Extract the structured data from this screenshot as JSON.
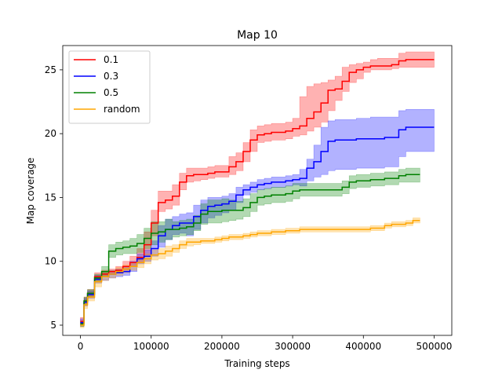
{
  "chart_data": {
    "type": "line",
    "title": "Map 10",
    "xlabel": "Training steps",
    "ylabel": "Map coverage",
    "xlim": [
      -25000,
      525000
    ],
    "ylim": [
      4.2,
      26.9
    ],
    "xticks": [
      0,
      100000,
      200000,
      300000,
      400000,
      500000
    ],
    "xtick_labels": [
      "0",
      "100000",
      "200000",
      "300000",
      "400000",
      "500000"
    ],
    "yticks": [
      5,
      10,
      15,
      20,
      25
    ],
    "ytick_labels": [
      "5",
      "10",
      "15",
      "20",
      "25"
    ],
    "grid": false,
    "legend_position": "top-left",
    "series": [
      {
        "name": "0.1",
        "color": "#ff0000",
        "x": [
          0,
          5000,
          10000,
          20000,
          30000,
          40000,
          50000,
          60000,
          70000,
          80000,
          90000,
          100000,
          110000,
          120000,
          130000,
          140000,
          150000,
          160000,
          170000,
          180000,
          190000,
          200000,
          210000,
          220000,
          230000,
          240000,
          250000,
          260000,
          270000,
          280000,
          290000,
          300000,
          310000,
          320000,
          330000,
          340000,
          350000,
          360000,
          370000,
          380000,
          390000,
          400000,
          410000,
          420000,
          430000,
          440000,
          450000,
          460000,
          470000,
          480000,
          490000,
          500000
        ],
        "y": [
          5.3,
          6.9,
          7.5,
          8.8,
          9.0,
          9.2,
          9.3,
          9.6,
          9.9,
          10.3,
          11.3,
          13.0,
          14.6,
          14.8,
          15.1,
          16.2,
          16.7,
          16.8,
          16.8,
          16.9,
          17.0,
          17.0,
          17.4,
          17.8,
          18.6,
          19.5,
          19.9,
          20.0,
          20.1,
          20.1,
          20.2,
          20.4,
          20.6,
          21.2,
          21.7,
          22.4,
          23.4,
          23.5,
          24.1,
          24.8,
          25.0,
          25.2,
          25.3,
          25.3,
          25.3,
          25.4,
          25.7,
          25.8,
          25.8,
          25.8,
          25.8,
          25.8
        ],
        "lower": [
          5.0,
          6.6,
          7.2,
          8.5,
          8.8,
          9.0,
          9.1,
          9.3,
          9.6,
          9.9,
          10.5,
          12.0,
          13.9,
          14.1,
          14.4,
          15.6,
          16.2,
          16.3,
          16.4,
          16.5,
          16.6,
          16.6,
          16.8,
          17.1,
          17.8,
          18.6,
          19.3,
          19.4,
          19.5,
          19.5,
          19.6,
          19.8,
          19.9,
          20.2,
          20.5,
          20.9,
          21.8,
          22.6,
          23.3,
          24.0,
          24.3,
          24.8,
          25.0,
          25.0,
          25.0,
          25.1,
          25.2,
          25.2,
          25.2,
          25.2,
          25.2,
          25.2
        ],
        "upper": [
          5.6,
          7.2,
          7.8,
          9.1,
          9.3,
          9.4,
          9.6,
          10.0,
          10.4,
          11.0,
          12.3,
          14.0,
          15.5,
          15.5,
          16.0,
          16.9,
          17.3,
          17.3,
          17.3,
          17.4,
          17.5,
          17.5,
          18.2,
          18.5,
          19.3,
          20.3,
          20.6,
          20.7,
          20.8,
          20.8,
          20.9,
          21.2,
          22.9,
          23.7,
          23.9,
          24.0,
          24.2,
          24.5,
          25.2,
          25.4,
          25.5,
          25.6,
          25.8,
          25.9,
          25.9,
          25.9,
          26.3,
          26.4,
          26.4,
          26.4,
          26.4,
          26.4
        ]
      },
      {
        "name": "0.3",
        "color": "#0000ff",
        "x": [
          0,
          5000,
          10000,
          20000,
          30000,
          40000,
          50000,
          60000,
          70000,
          80000,
          90000,
          100000,
          110000,
          120000,
          130000,
          140000,
          150000,
          160000,
          170000,
          180000,
          190000,
          200000,
          210000,
          220000,
          230000,
          240000,
          250000,
          260000,
          270000,
          280000,
          290000,
          300000,
          310000,
          320000,
          330000,
          340000,
          350000,
          360000,
          370000,
          380000,
          390000,
          400000,
          410000,
          420000,
          430000,
          440000,
          450000,
          460000,
          470000,
          480000,
          490000,
          500000
        ],
        "y": [
          5.2,
          6.8,
          7.4,
          8.6,
          8.8,
          9.0,
          9.1,
          9.2,
          9.6,
          10.2,
          10.4,
          11.0,
          12.0,
          12.5,
          12.8,
          13.0,
          13.0,
          13.5,
          14.0,
          14.3,
          14.4,
          14.5,
          14.7,
          15.2,
          15.6,
          15.8,
          16.0,
          16.1,
          16.2,
          16.2,
          16.3,
          16.4,
          16.5,
          17.3,
          17.8,
          18.6,
          19.4,
          19.5,
          19.5,
          19.5,
          19.6,
          19.6,
          19.6,
          19.6,
          19.7,
          19.7,
          20.3,
          20.5,
          20.5,
          20.5,
          20.5,
          20.5
        ],
        "lower": [
          4.9,
          6.5,
          7.1,
          8.3,
          8.5,
          8.7,
          8.8,
          8.9,
          9.2,
          9.8,
          10.0,
          10.4,
          11.1,
          11.7,
          12.1,
          12.2,
          12.0,
          12.5,
          13.0,
          13.4,
          13.6,
          13.8,
          14.0,
          14.6,
          15.2,
          15.4,
          15.6,
          15.7,
          15.8,
          15.8,
          15.9,
          16.0,
          15.9,
          16.3,
          16.6,
          16.8,
          17.1,
          17.2,
          17.2,
          17.2,
          17.3,
          17.3,
          17.3,
          17.3,
          17.4,
          17.4,
          18.2,
          18.6,
          18.6,
          18.6,
          18.6,
          18.6
        ],
        "upper": [
          5.5,
          7.1,
          7.7,
          8.9,
          9.1,
          9.3,
          9.4,
          9.6,
          10.0,
          10.6,
          10.9,
          11.6,
          12.8,
          13.3,
          13.5,
          13.7,
          13.8,
          14.4,
          14.8,
          15.0,
          15.0,
          15.1,
          15.3,
          15.8,
          16.0,
          16.2,
          16.4,
          16.5,
          16.6,
          16.6,
          16.7,
          16.8,
          17.2,
          18.0,
          19.1,
          20.5,
          21.0,
          21.1,
          21.1,
          21.1,
          21.2,
          21.2,
          21.3,
          21.3,
          21.3,
          21.3,
          21.8,
          21.9,
          21.9,
          21.9,
          21.9,
          21.9
        ]
      },
      {
        "name": "0.5",
        "color": "#008000",
        "x": [
          0,
          5000,
          10000,
          20000,
          30000,
          40000,
          50000,
          60000,
          70000,
          80000,
          90000,
          100000,
          110000,
          120000,
          130000,
          140000,
          150000,
          160000,
          170000,
          180000,
          190000,
          200000,
          210000,
          220000,
          230000,
          240000,
          250000,
          260000,
          270000,
          280000,
          290000,
          300000,
          310000,
          320000,
          330000,
          340000,
          350000,
          360000,
          370000,
          380000,
          390000,
          400000,
          410000,
          420000,
          430000,
          440000,
          450000,
          460000,
          470000,
          480000
        ],
        "y": [
          5.1,
          6.9,
          7.5,
          8.7,
          9.2,
          10.8,
          11.0,
          11.1,
          11.2,
          11.4,
          11.8,
          12.2,
          12.3,
          12.5,
          12.5,
          12.6,
          12.7,
          13.0,
          13.7,
          13.9,
          13.9,
          14.0,
          14.0,
          14.0,
          14.2,
          14.6,
          15.0,
          15.1,
          15.2,
          15.2,
          15.3,
          15.5,
          15.6,
          15.6,
          15.6,
          15.6,
          15.6,
          15.6,
          15.8,
          16.2,
          16.3,
          16.3,
          16.4,
          16.4,
          16.5,
          16.5,
          16.7,
          16.8,
          16.8,
          16.8
        ],
        "lower": [
          4.9,
          6.6,
          7.2,
          8.4,
          8.8,
          10.3,
          10.5,
          10.6,
          10.6,
          10.7,
          11.0,
          11.3,
          11.5,
          11.7,
          11.9,
          12.0,
          12.1,
          12.4,
          12.9,
          13.0,
          13.0,
          13.1,
          13.2,
          13.3,
          13.5,
          13.9,
          14.4,
          14.5,
          14.6,
          14.6,
          14.7,
          14.9,
          15.1,
          15.1,
          15.1,
          15.1,
          15.1,
          15.1,
          15.3,
          15.7,
          15.8,
          15.8,
          15.9,
          15.9,
          16.0,
          16.0,
          16.2,
          16.2,
          16.2,
          16.2
        ],
        "upper": [
          5.3,
          7.2,
          7.8,
          9.0,
          9.6,
          11.3,
          11.5,
          11.6,
          11.8,
          12.1,
          12.6,
          13.1,
          13.1,
          13.3,
          13.1,
          13.2,
          13.3,
          13.6,
          14.5,
          14.8,
          14.8,
          14.9,
          14.8,
          14.7,
          14.9,
          15.3,
          15.6,
          15.7,
          15.8,
          15.8,
          15.9,
          16.1,
          16.1,
          16.1,
          16.1,
          16.1,
          16.1,
          16.1,
          16.3,
          16.7,
          16.8,
          16.8,
          16.9,
          16.9,
          17.0,
          17.0,
          17.2,
          17.3,
          17.3,
          17.3
        ]
      },
      {
        "name": "random",
        "color": "#ffa500",
        "x": [
          0,
          5000,
          10000,
          20000,
          30000,
          40000,
          50000,
          60000,
          70000,
          80000,
          90000,
          100000,
          110000,
          120000,
          130000,
          140000,
          150000,
          160000,
          170000,
          180000,
          190000,
          200000,
          210000,
          220000,
          230000,
          240000,
          250000,
          260000,
          270000,
          280000,
          290000,
          300000,
          310000,
          320000,
          330000,
          340000,
          350000,
          360000,
          370000,
          380000,
          390000,
          400000,
          410000,
          420000,
          430000,
          440000,
          450000,
          460000,
          470000,
          480000
        ],
        "y": [
          5.0,
          6.6,
          7.2,
          8.4,
          8.8,
          9.0,
          9.2,
          9.4,
          9.6,
          9.9,
          10.2,
          10.5,
          10.6,
          10.8,
          11.0,
          11.3,
          11.5,
          11.5,
          11.6,
          11.6,
          11.7,
          11.8,
          11.9,
          11.9,
          12.0,
          12.1,
          12.2,
          12.2,
          12.3,
          12.3,
          12.4,
          12.4,
          12.5,
          12.5,
          12.5,
          12.5,
          12.5,
          12.5,
          12.5,
          12.5,
          12.5,
          12.5,
          12.6,
          12.6,
          12.8,
          12.9,
          12.9,
          13.0,
          13.2,
          13.2
        ],
        "lower": [
          4.8,
          6.3,
          6.9,
          8.0,
          8.5,
          8.7,
          8.9,
          9.1,
          9.3,
          9.5,
          9.8,
          10.1,
          10.2,
          10.4,
          10.7,
          11.0,
          11.2,
          11.3,
          11.4,
          11.4,
          11.5,
          11.6,
          11.7,
          11.7,
          11.8,
          11.9,
          12.0,
          12.0,
          12.1,
          12.1,
          12.2,
          12.2,
          12.3,
          12.3,
          12.3,
          12.3,
          12.3,
          12.3,
          12.3,
          12.3,
          12.3,
          12.3,
          12.4,
          12.4,
          12.6,
          12.7,
          12.7,
          12.8,
          13.0,
          13.0
        ],
        "upper": [
          5.2,
          6.9,
          7.5,
          8.7,
          9.1,
          9.3,
          9.5,
          9.7,
          9.9,
          10.3,
          10.6,
          10.9,
          11.0,
          11.2,
          11.3,
          11.6,
          11.8,
          11.8,
          11.8,
          11.8,
          11.9,
          12.0,
          12.1,
          12.1,
          12.2,
          12.3,
          12.4,
          12.4,
          12.5,
          12.5,
          12.6,
          12.6,
          12.7,
          12.7,
          12.7,
          12.7,
          12.7,
          12.7,
          12.7,
          12.7,
          12.7,
          12.7,
          12.8,
          12.8,
          13.0,
          13.1,
          13.1,
          13.2,
          13.4,
          13.4
        ]
      }
    ]
  }
}
